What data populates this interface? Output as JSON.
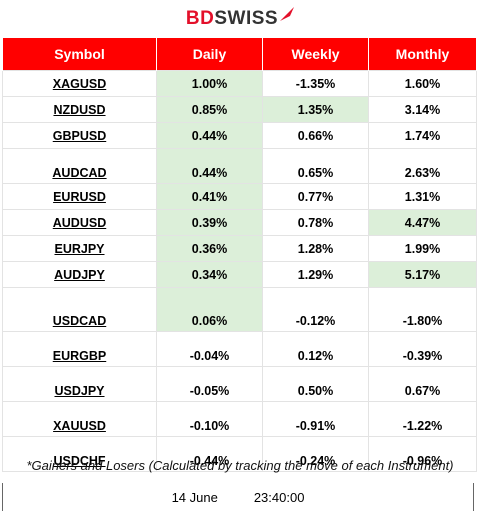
{
  "brand": {
    "name_part1": "BD",
    "name_part2": "SWISS",
    "logo_icon": "arrow-up-right-icon",
    "brand_color": "#e3102a"
  },
  "table": {
    "headers": [
      "Symbol",
      "Daily",
      "Weekly",
      "Monthly"
    ],
    "header_color": "#ff0000",
    "highlight_color": "#dcefd9",
    "rows": [
      {
        "symbol": "XAGUSD",
        "daily": "1.00%",
        "weekly": "-1.35%",
        "monthly": "1.60%"
      },
      {
        "symbol": "NZDUSD",
        "daily": "0.85%",
        "weekly": "1.35%",
        "monthly": "3.14%"
      },
      {
        "symbol": "GBPUSD",
        "daily": "0.44%",
        "weekly": "0.66%",
        "monthly": "1.74%"
      },
      {
        "symbol": "AUDCAD",
        "daily": "0.44%",
        "weekly": "0.65%",
        "monthly": "2.63%"
      },
      {
        "symbol": "EURUSD",
        "daily": "0.41%",
        "weekly": "0.77%",
        "monthly": "1.31%"
      },
      {
        "symbol": "AUDUSD",
        "daily": "0.39%",
        "weekly": "0.78%",
        "monthly": "4.47%"
      },
      {
        "symbol": "EURJPY",
        "daily": "0.36%",
        "weekly": "1.28%",
        "monthly": "1.99%"
      },
      {
        "symbol": "AUDJPY",
        "daily": "0.34%",
        "weekly": "1.29%",
        "monthly": "5.17%"
      },
      {
        "symbol": "USDCAD",
        "daily": "0.06%",
        "weekly": "-0.12%",
        "monthly": "-1.80%"
      },
      {
        "symbol": "EURGBP",
        "daily": "-0.04%",
        "weekly": "0.12%",
        "monthly": "-0.39%"
      },
      {
        "symbol": "USDJPY",
        "daily": "-0.05%",
        "weekly": "0.50%",
        "monthly": "0.67%"
      },
      {
        "symbol": "XAUUSD",
        "daily": "-0.10%",
        "weekly": "-0.91%",
        "monthly": "-1.22%"
      },
      {
        "symbol": "USDCHF",
        "daily": "-0.44%",
        "weekly": "-0.24%",
        "monthly": "-0.96%"
      }
    ]
  },
  "footnote": "*Gainers and Losers (Calculated by tracking the move of each Instrument)",
  "footer": {
    "date": "14 June",
    "time": "23:40:00"
  }
}
